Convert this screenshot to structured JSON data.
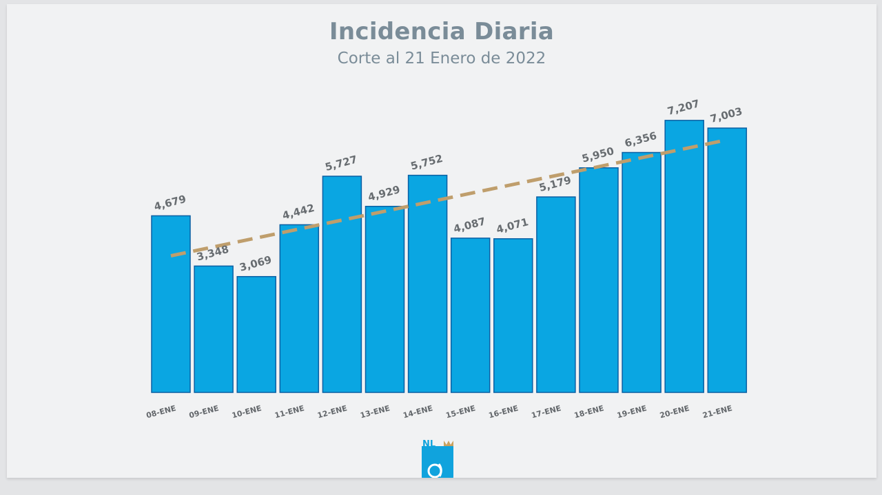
{
  "chart_data": {
    "type": "bar",
    "title": "Incidencia Diaria",
    "subtitle": "Corte al 21 Enero de 2022",
    "categories": [
      "08-ENE",
      "09-ENE",
      "10-ENE",
      "11-ENE",
      "12-ENE",
      "13-ENE",
      "14-ENE",
      "15-ENE",
      "16-ENE",
      "17-ENE",
      "18-ENE",
      "19-ENE",
      "20-ENE",
      "21-ENE"
    ],
    "values": [
      4679,
      3348,
      3069,
      4442,
      5727,
      4929,
      5752,
      4087,
      4071,
      5179,
      5950,
      6356,
      7207,
      7003
    ],
    "value_labels": [
      "4,679",
      "3,348",
      "3,069",
      "4,442",
      "5,727",
      "4,929",
      "5,752",
      "4,087",
      "4,071",
      "5,179",
      "5,950",
      "6,356",
      "7,207",
      "7,003"
    ],
    "trendline": {
      "type": "linear",
      "style": "dashed",
      "start": 3620,
      "end": 6690
    },
    "ylim": [
      0,
      7350
    ],
    "colors": {
      "bar": "#0aa6e2",
      "bar_border": "#0b5fa3",
      "trend": "#bf9e6c",
      "text": "#7a8c98"
    }
  },
  "logo": {
    "text": "NL"
  }
}
